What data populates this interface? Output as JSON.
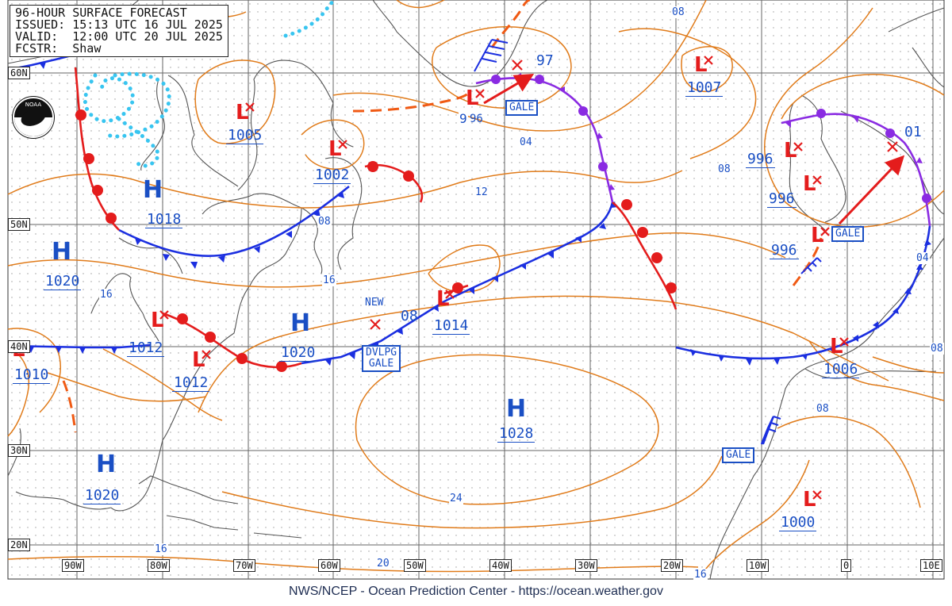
{
  "header": {
    "line1": "96-HOUR SURFACE FORECAST",
    "line2": "ISSUED: 15:13 UTC 16 JUL 2025",
    "line3": "VALID:  12:00 UTC 20 JUL 2025",
    "line4": "FCSTR:  Shaw"
  },
  "footer": "NWS/NCEP - Ocean Prediction Center - https://ocean.weather.gov",
  "logo": {
    "icon": "noaa-logo-icon",
    "text": "NOAA"
  },
  "lat_labels": [
    "60N",
    "50N",
    "40N",
    "30N",
    "20N"
  ],
  "lon_labels": [
    "90W",
    "80W",
    "70W",
    "60W",
    "50W",
    "40W",
    "30W",
    "20W",
    "10W",
    "0",
    "10E"
  ],
  "high_pressure": [
    {
      "symbol": "H",
      "value": "1018"
    },
    {
      "symbol": "H",
      "value": "1020"
    },
    {
      "symbol": "H",
      "value": "1020"
    },
    {
      "symbol": "H",
      "value": "1028"
    },
    {
      "symbol": "H",
      "value": "1020"
    }
  ],
  "low_pressure": [
    {
      "symbol": "L",
      "value": "1005"
    },
    {
      "symbol": "L",
      "value": "1002"
    },
    {
      "symbol": "L",
      "value": "1012"
    },
    {
      "symbol": "L",
      "value": "1012"
    },
    {
      "symbol": "L",
      "value": "1010"
    },
    {
      "symbol": "L",
      "value": "1014"
    },
    {
      "symbol": "L",
      "value": "1007"
    },
    {
      "symbol": "L",
      "value": "996"
    },
    {
      "symbol": "L",
      "value": "996"
    },
    {
      "symbol": "L",
      "value": "996"
    },
    {
      "symbol": "L",
      "value": "1006"
    },
    {
      "symbol": "L",
      "value": "1000"
    },
    {
      "symbol": "L",
      "value": "96"
    }
  ],
  "forecast_center_values": [
    "97",
    "08",
    "01"
  ],
  "isobar_labels": [
    "08",
    "04",
    "12",
    "08",
    "16",
    "16",
    "08",
    "08",
    "04",
    "08",
    "24",
    "16",
    "20",
    "16",
    "9"
  ],
  "warnings": [
    {
      "line1": "GALE",
      "line2": ""
    },
    {
      "line1": "GALE",
      "line2": ""
    },
    {
      "line1": "DVLPG",
      "line2": "GALE"
    },
    {
      "line1": "GALE",
      "line2": ""
    }
  ],
  "new_label": "NEW",
  "colors": {
    "isobar": "#e07b1a",
    "warm_front": "#e41c1c",
    "cold_front": "#1b2fe0",
    "occluded_front": "#8a2be2",
    "trough": "#f05a14",
    "ice": "#38c5f0",
    "pressure_text": "#1a4fc4",
    "coast": "#555555",
    "grid": "#777777"
  }
}
